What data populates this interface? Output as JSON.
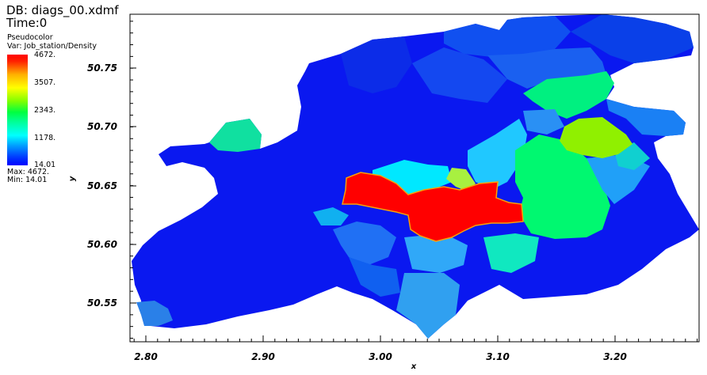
{
  "header": {
    "db": "DB: diags_00.xdmf",
    "time": "Time:0"
  },
  "legend": {
    "plot_type": "Pseudocolor",
    "variable": "Var: Job_station/Density",
    "labels": [
      "4672.",
      "3507.",
      "2343.",
      "1178.",
      "14.01"
    ],
    "max": "Max:  4672.",
    "min": "Min:  14.01"
  },
  "colors": {
    "low": "#0000ff",
    "mid": "#00ff80",
    "high": "#ff0000"
  },
  "chart_data": {
    "type": "heatmap",
    "xlabel": "x",
    "ylabel": "y",
    "xlim": [
      2.78,
      3.27
    ],
    "ylim": [
      50.515,
      50.8
    ],
    "x_ticks": [
      "2.80",
      "2.90",
      "3.00",
      "3.10",
      "3.20"
    ],
    "y_ticks": [
      "50.55",
      "50.60",
      "50.65",
      "50.70",
      "50.75"
    ],
    "value_range": [
      14.01,
      4672
    ]
  }
}
